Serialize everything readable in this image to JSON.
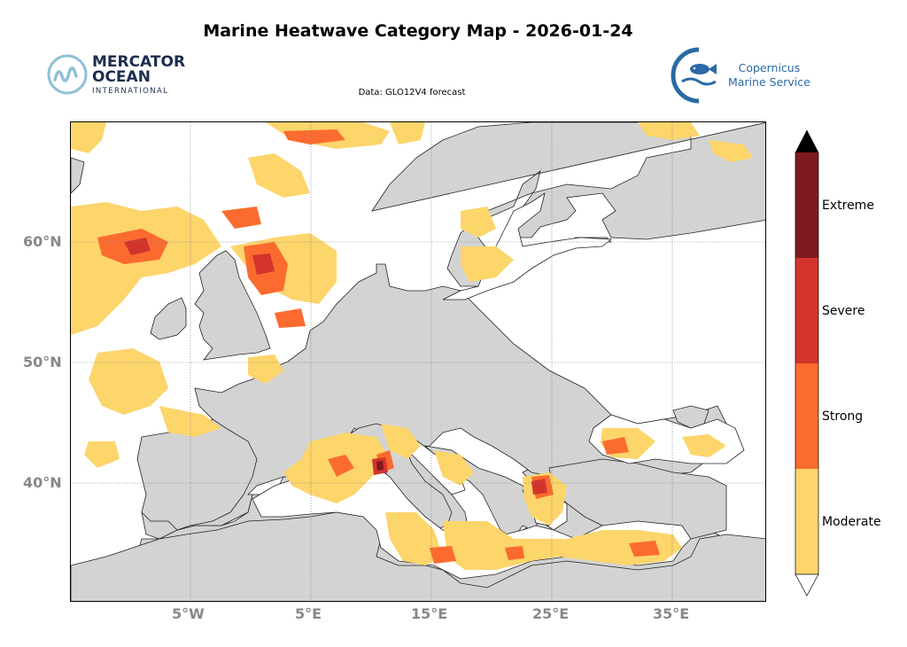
{
  "title": "Marine Heatwave Category Map - 2026-01-24",
  "subtitle": "Data: GLO12V4 forecast",
  "logos": {
    "left": {
      "line1": "MERCATOR",
      "line2": "OCEAN",
      "line3": "INTERNATIONAL"
    },
    "right": {
      "line1": "Copernicus",
      "line2": "Marine Service"
    }
  },
  "map": {
    "lat_labels": [
      "60°N",
      "50°N",
      "40°N"
    ],
    "lon_labels": [
      "5°W",
      "5°E",
      "15°E",
      "25°E",
      "35°E"
    ],
    "colors": {
      "land": "#d3d3d3",
      "ocean": "#ffffff",
      "grid": "#808080"
    }
  },
  "legend": {
    "categories": [
      {
        "label": "Moderate",
        "color": "#fcd56b"
      },
      {
        "label": "Strong",
        "color": "#fb6b2f"
      },
      {
        "label": "Severe",
        "color": "#d2342d"
      },
      {
        "label": "Extreme",
        "color": "#7f1a1f"
      }
    ],
    "over_color": "#000000",
    "under_color": "#ffffff"
  }
}
